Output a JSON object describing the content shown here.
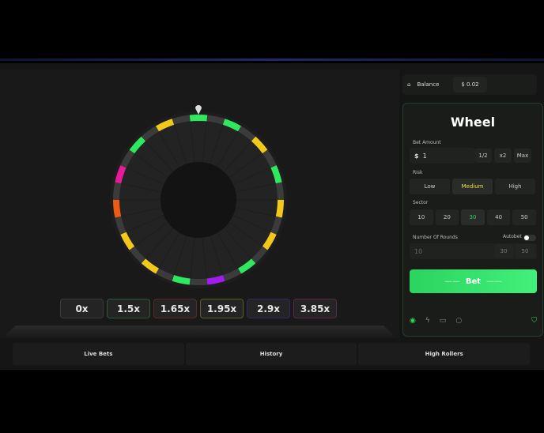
{
  "wheel": {
    "segments": 30,
    "colors": {
      "gray": "#3a3b3a",
      "green": "#2ee85e",
      "yellow": "#f2c91a",
      "purple": "#a21cf0",
      "orange": "#f05a14",
      "pink": "#e81a9c"
    },
    "segment_colors": [
      "green",
      "gray",
      "green",
      "gray",
      "yellow",
      "gray",
      "green",
      "gray",
      "yellow",
      "gray",
      "yellow",
      "gray",
      "green",
      "gray",
      "purple",
      "gray",
      "green",
      "gray",
      "yellow",
      "gray",
      "yellow",
      "gray",
      "orange",
      "gray",
      "pink",
      "gray",
      "green",
      "gray",
      "yellow",
      "gray"
    ]
  },
  "multipliers": [
    {
      "label": "0x",
      "border": "#3a3a3a"
    },
    {
      "label": "1.5x",
      "border": "#2d5a3a"
    },
    {
      "label": "1.65x",
      "border": "#5a2a2a"
    },
    {
      "label": "1.95x",
      "border": "#5a5a2a"
    },
    {
      "label": "2.9x",
      "border": "#2e2a5a"
    },
    {
      "label": "3.85x",
      "border": "#5a2a4a"
    }
  ],
  "balance": {
    "label": "Balance",
    "value": "$ 0.02"
  },
  "panel": {
    "title": "Wheel",
    "bet_amount_label": "Bet Amount",
    "currency": "$",
    "bet_amount": "1",
    "half": "1/2",
    "double": "x2",
    "max": "Max",
    "risk_label": "Risk",
    "risk_options": [
      "Low",
      "Medium",
      "High"
    ],
    "risk_selected": "Medium",
    "sector_label": "Sector",
    "sector_options": [
      "10",
      "20",
      "30",
      "40",
      "50"
    ],
    "sector_selected": "30",
    "rounds_label": "Number Of Rounds",
    "autobet_label": "Autobet",
    "rounds_value": "10",
    "rounds_options": [
      "30",
      "50"
    ],
    "bet_button": "Bet"
  },
  "tabs": [
    "Live Bets",
    "History",
    "High Rollers"
  ]
}
